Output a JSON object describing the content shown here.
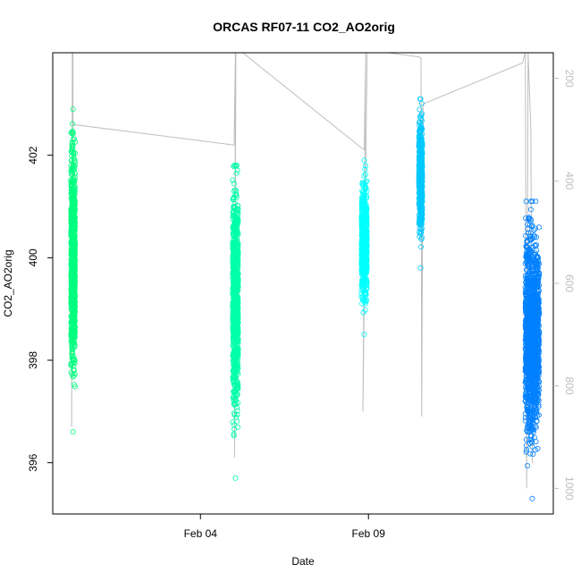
{
  "chart_data": {
    "type": "scatter",
    "title": "ORCAS RF07-11 CO2_AO2orig",
    "xlabel": "Date",
    "ylabel": "CO2_AO2orig",
    "xlim": [
      "2016-01-30T14:30",
      "2016-02-14T12:00"
    ],
    "ylim": [
      395,
      404
    ],
    "x_ticks": [
      {
        "date": "2016-02-04T00:00",
        "label": "Feb 04"
      },
      {
        "date": "2016-02-09T00:00",
        "label": "Feb 09"
      }
    ],
    "y_ticks": [
      {
        "value": 396,
        "label": "396"
      },
      {
        "value": 398,
        "label": "398"
      },
      {
        "value": 400,
        "label": "400"
      },
      {
        "value": 402,
        "label": "402"
      }
    ],
    "secondary_y": {
      "description": "altitude / pressure track drawn in gray, reversed axis",
      "ylim": [
        1050,
        150
      ],
      "ticks": [
        {
          "value": 200,
          "label": "200"
        },
        {
          "value": 400,
          "label": "400"
        },
        {
          "value": 600,
          "label": "600"
        },
        {
          "value": 800,
          "label": "800"
        },
        {
          "value": 1000,
          "label": "1000"
        }
      ],
      "color": "#bebebe",
      "track": [
        {
          "x": "2016-01-31T04:30",
          "y": 150
        },
        {
          "x": "2016-01-31T04:00",
          "y": 880
        },
        {
          "x": "2016-01-31T05:00",
          "y": 150
        },
        {
          "x": "2016-01-31T05:00",
          "y": 290
        },
        {
          "x": "2016-02-05T00:00",
          "y": 330
        },
        {
          "x": "2016-02-05T01:00",
          "y": 150
        },
        {
          "x": "2016-02-05T00:20",
          "y": 940
        },
        {
          "x": "2016-02-05T01:20",
          "y": 150
        },
        {
          "x": "2016-02-05T01:40",
          "y": 140
        },
        {
          "x": "2016-02-08T21:00",
          "y": 340
        },
        {
          "x": "2016-02-08T22:00",
          "y": 150
        },
        {
          "x": "2016-02-08T20:00",
          "y": 850
        },
        {
          "x": "2016-02-08T23:00",
          "y": 150
        },
        {
          "x": "2016-02-08T23:30",
          "y": 145
        },
        {
          "x": "2016-02-10T12:00",
          "y": 158
        },
        {
          "x": "2016-02-10T13:30",
          "y": 160
        },
        {
          "x": "2016-02-10T14:00",
          "y": 860
        },
        {
          "x": "2016-02-10T15:00",
          "y": 250
        },
        {
          "x": "2016-02-13T14:00",
          "y": 170
        },
        {
          "x": "2016-02-13T16:00",
          "y": 150
        },
        {
          "x": "2016-02-13T17:00",
          "y": 1000
        },
        {
          "x": "2016-02-13T18:00",
          "y": 150
        },
        {
          "x": "2016-02-13T20:00",
          "y": 300
        },
        {
          "x": "2016-02-13T21:00",
          "y": 950
        }
      ]
    },
    "series": [
      {
        "color": "#00ff7f",
        "marker": "open-circle",
        "x_start": "2016-01-31T03:30",
        "x_end": "2016-01-31T06:30",
        "y_min": 396.6,
        "y_max": 402.9,
        "y_center": 400.0,
        "n_points": 900
      },
      {
        "color": "#00ffaa",
        "marker": "open-circle",
        "x_start": "2016-02-04T23:00",
        "x_end": "2016-02-05T03:00",
        "y_min": 395.7,
        "y_max": 401.8,
        "y_center": 399.2,
        "n_points": 900
      },
      {
        "color": "#00ffff",
        "marker": "open-circle",
        "x_start": "2016-02-08T19:00",
        "x_end": "2016-02-08T23:00",
        "y_min": 398.5,
        "y_max": 401.9,
        "y_center": 400.3,
        "n_points": 700
      },
      {
        "color": "#00c8ff",
        "marker": "open-circle",
        "x_start": "2016-02-10T12:00",
        "x_end": "2016-02-10T14:30",
        "y_min": 399.8,
        "y_max": 403.1,
        "y_center": 401.6,
        "n_points": 500
      },
      {
        "color": "#0080ff",
        "marker": "open-circle",
        "x_start": "2016-02-13T16:00",
        "x_end": "2016-02-14T02:00",
        "y_min": 395.3,
        "y_max": 401.1,
        "y_center": 398.5,
        "n_points": 1400
      }
    ]
  }
}
